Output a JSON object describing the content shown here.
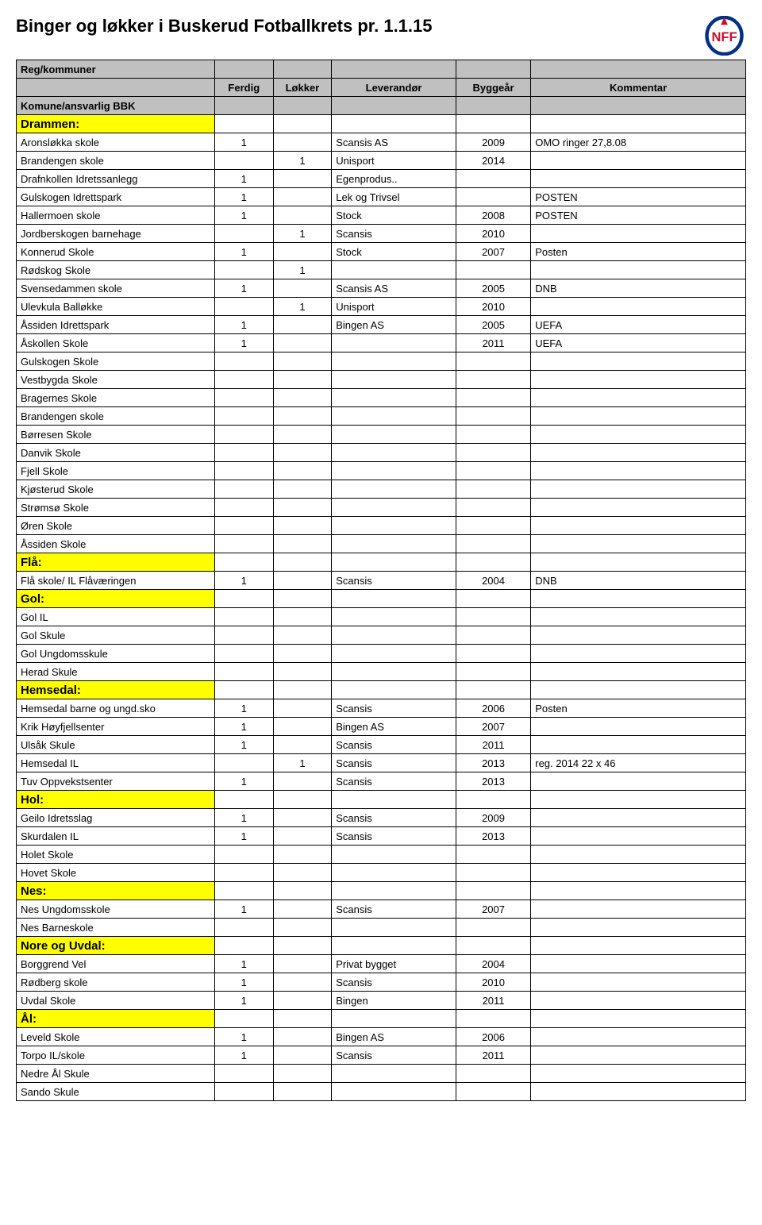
{
  "title": "Binger og løkker i Buskerud Fotballkrets pr. 1.1.15",
  "columns": {
    "reg": "Reg/kommuner",
    "komune": "Komune/ansvarlig BBK",
    "ferdig": "Ferdig",
    "lokker": "Løkker",
    "leverandor": "Leverandør",
    "byggear": "Byggeår",
    "kommentar": "Kommentar"
  },
  "logo_colors": {
    "ring": "#003087",
    "text": "#c8102e"
  },
  "rows": [
    {
      "type": "section",
      "name": "Drammen:"
    },
    {
      "name": "Aronsløkka skole",
      "ferdig": "1",
      "lokker": "",
      "lev": "Scansis AS",
      "year": "2009",
      "comment": "OMO ringer 27,8.08"
    },
    {
      "name": "Brandengen skole",
      "ferdig": "",
      "lokker": "1",
      "lev": "Unisport",
      "year": "2014",
      "comment": ""
    },
    {
      "name": "Drafnkollen Idretssanlegg",
      "ferdig": "1",
      "lokker": "",
      "lev": "Egenprodus..",
      "year": "",
      "comment": ""
    },
    {
      "name": "Gulskogen Idrettspark",
      "ferdig": "1",
      "lokker": "",
      "lev": "Lek og Trivsel",
      "year": "",
      "comment": "POSTEN"
    },
    {
      "name": "Hallermoen skole",
      "ferdig": "1",
      "lokker": "",
      "lev": "Stock",
      "year": "2008",
      "comment": "POSTEN"
    },
    {
      "name": "Jordberskogen barnehage",
      "ferdig": "",
      "lokker": "1",
      "lev": "Scansis",
      "year": "2010",
      "comment": ""
    },
    {
      "name": "Konnerud Skole",
      "ferdig": "1",
      "lokker": "",
      "lev": "Stock",
      "year": "2007",
      "comment": "Posten"
    },
    {
      "name": "Rødskog Skole",
      "ferdig": "",
      "lokker": "1",
      "lev": "",
      "year": "",
      "comment": ""
    },
    {
      "name": "Svensedammen skole",
      "ferdig": "1",
      "lokker": "",
      "lev": "Scansis AS",
      "year": "2005",
      "comment": "DNB"
    },
    {
      "name": "Ulevkula Balløkke",
      "ferdig": "",
      "lokker": "1",
      "lev": "Unisport",
      "year": "2010",
      "comment": ""
    },
    {
      "name": "Åssiden Idrettspark",
      "ferdig": "1",
      "lokker": "",
      "lev": "Bingen AS",
      "year": "2005",
      "comment": "UEFA"
    },
    {
      "name": "Åskollen Skole",
      "ferdig": "1",
      "lokker": "",
      "lev": "",
      "year": "2011",
      "comment": "UEFA"
    },
    {
      "name": "Gulskogen Skole"
    },
    {
      "name": "Vestbygda Skole"
    },
    {
      "name": "Bragernes Skole"
    },
    {
      "name": "Brandengen skole"
    },
    {
      "name": "Børresen Skole"
    },
    {
      "name": "Danvik Skole"
    },
    {
      "name": "Fjell Skole"
    },
    {
      "name": "Kjøsterud Skole"
    },
    {
      "name": "Strømsø Skole"
    },
    {
      "name": "Øren Skole"
    },
    {
      "name": "Åssiden Skole"
    },
    {
      "type": "section",
      "name": "Flå:"
    },
    {
      "name": "Flå skole/ IL Flåværingen",
      "ferdig": "1",
      "lokker": "",
      "lev": "Scansis",
      "year": "2004",
      "comment": "DNB"
    },
    {
      "type": "section",
      "name": "Gol:"
    },
    {
      "name": "Gol IL"
    },
    {
      "name": "Gol Skule"
    },
    {
      "name": "Gol Ungdomsskule"
    },
    {
      "name": "Herad Skule"
    },
    {
      "type": "section",
      "name": "Hemsedal:"
    },
    {
      "name": "Hemsedal barne og ungd.sko",
      "ferdig": "1",
      "lokker": "",
      "lev": "Scansis",
      "year": "2006",
      "comment": "Posten"
    },
    {
      "name": "Krik Høyfjellsenter",
      "ferdig": "1",
      "lokker": "",
      "lev": "Bingen AS",
      "year": "2007",
      "comment": ""
    },
    {
      "name": "Ulsåk Skule",
      "ferdig": "1",
      "lokker": "",
      "lev": "Scansis",
      "year": "2011",
      "comment": ""
    },
    {
      "name": "Hemsedal IL",
      "ferdig": "",
      "lokker": "1",
      "lev": "Scansis",
      "year": "2013",
      "comment": "reg. 2014 22 x 46"
    },
    {
      "name": "Tuv Oppvekstsenter",
      "ferdig": "1",
      "lokker": "",
      "lev": "Scansis",
      "year": "2013",
      "comment": ""
    },
    {
      "type": "section",
      "name": "Hol:"
    },
    {
      "name": "Geilo Idretsslag",
      "ferdig": "1",
      "lokker": "",
      "lev": "Scansis",
      "year": "2009",
      "comment": ""
    },
    {
      "name": "Skurdalen IL",
      "ferdig": "1",
      "lokker": "",
      "lev": "Scansis",
      "year": "2013",
      "comment": ""
    },
    {
      "name": "Holet Skole"
    },
    {
      "name": "Hovet Skole"
    },
    {
      "type": "section",
      "name": "Nes:"
    },
    {
      "name": "Nes Ungdomsskole",
      "ferdig": "1",
      "lokker": "",
      "lev": "Scansis",
      "year": "2007",
      "comment": ""
    },
    {
      "name": "Nes Barneskole"
    },
    {
      "type": "section",
      "name": "Nore og Uvdal:"
    },
    {
      "name": "Borggrend Vel",
      "ferdig": "1",
      "lokker": "",
      "lev": "Privat bygget",
      "year": "2004",
      "comment": ""
    },
    {
      "name": "Rødberg skole",
      "ferdig": "1",
      "lokker": "",
      "lev": "Scansis",
      "year": "2010",
      "comment": ""
    },
    {
      "name": "Uvdal Skole",
      "ferdig": "1",
      "lokker": "",
      "lev": "Bingen",
      "year": "2011",
      "comment": ""
    },
    {
      "type": "section",
      "name": "Ål:"
    },
    {
      "name": "Leveld Skole",
      "ferdig": "1",
      "lokker": "",
      "lev": "Bingen AS",
      "year": "2006",
      "comment": ""
    },
    {
      "name": "Torpo IL/skole",
      "ferdig": "1",
      "lokker": "",
      "lev": "Scansis",
      "year": "2011",
      "comment": ""
    },
    {
      "name": "Nedre Ål Skule"
    },
    {
      "name": "Sando Skule"
    }
  ]
}
